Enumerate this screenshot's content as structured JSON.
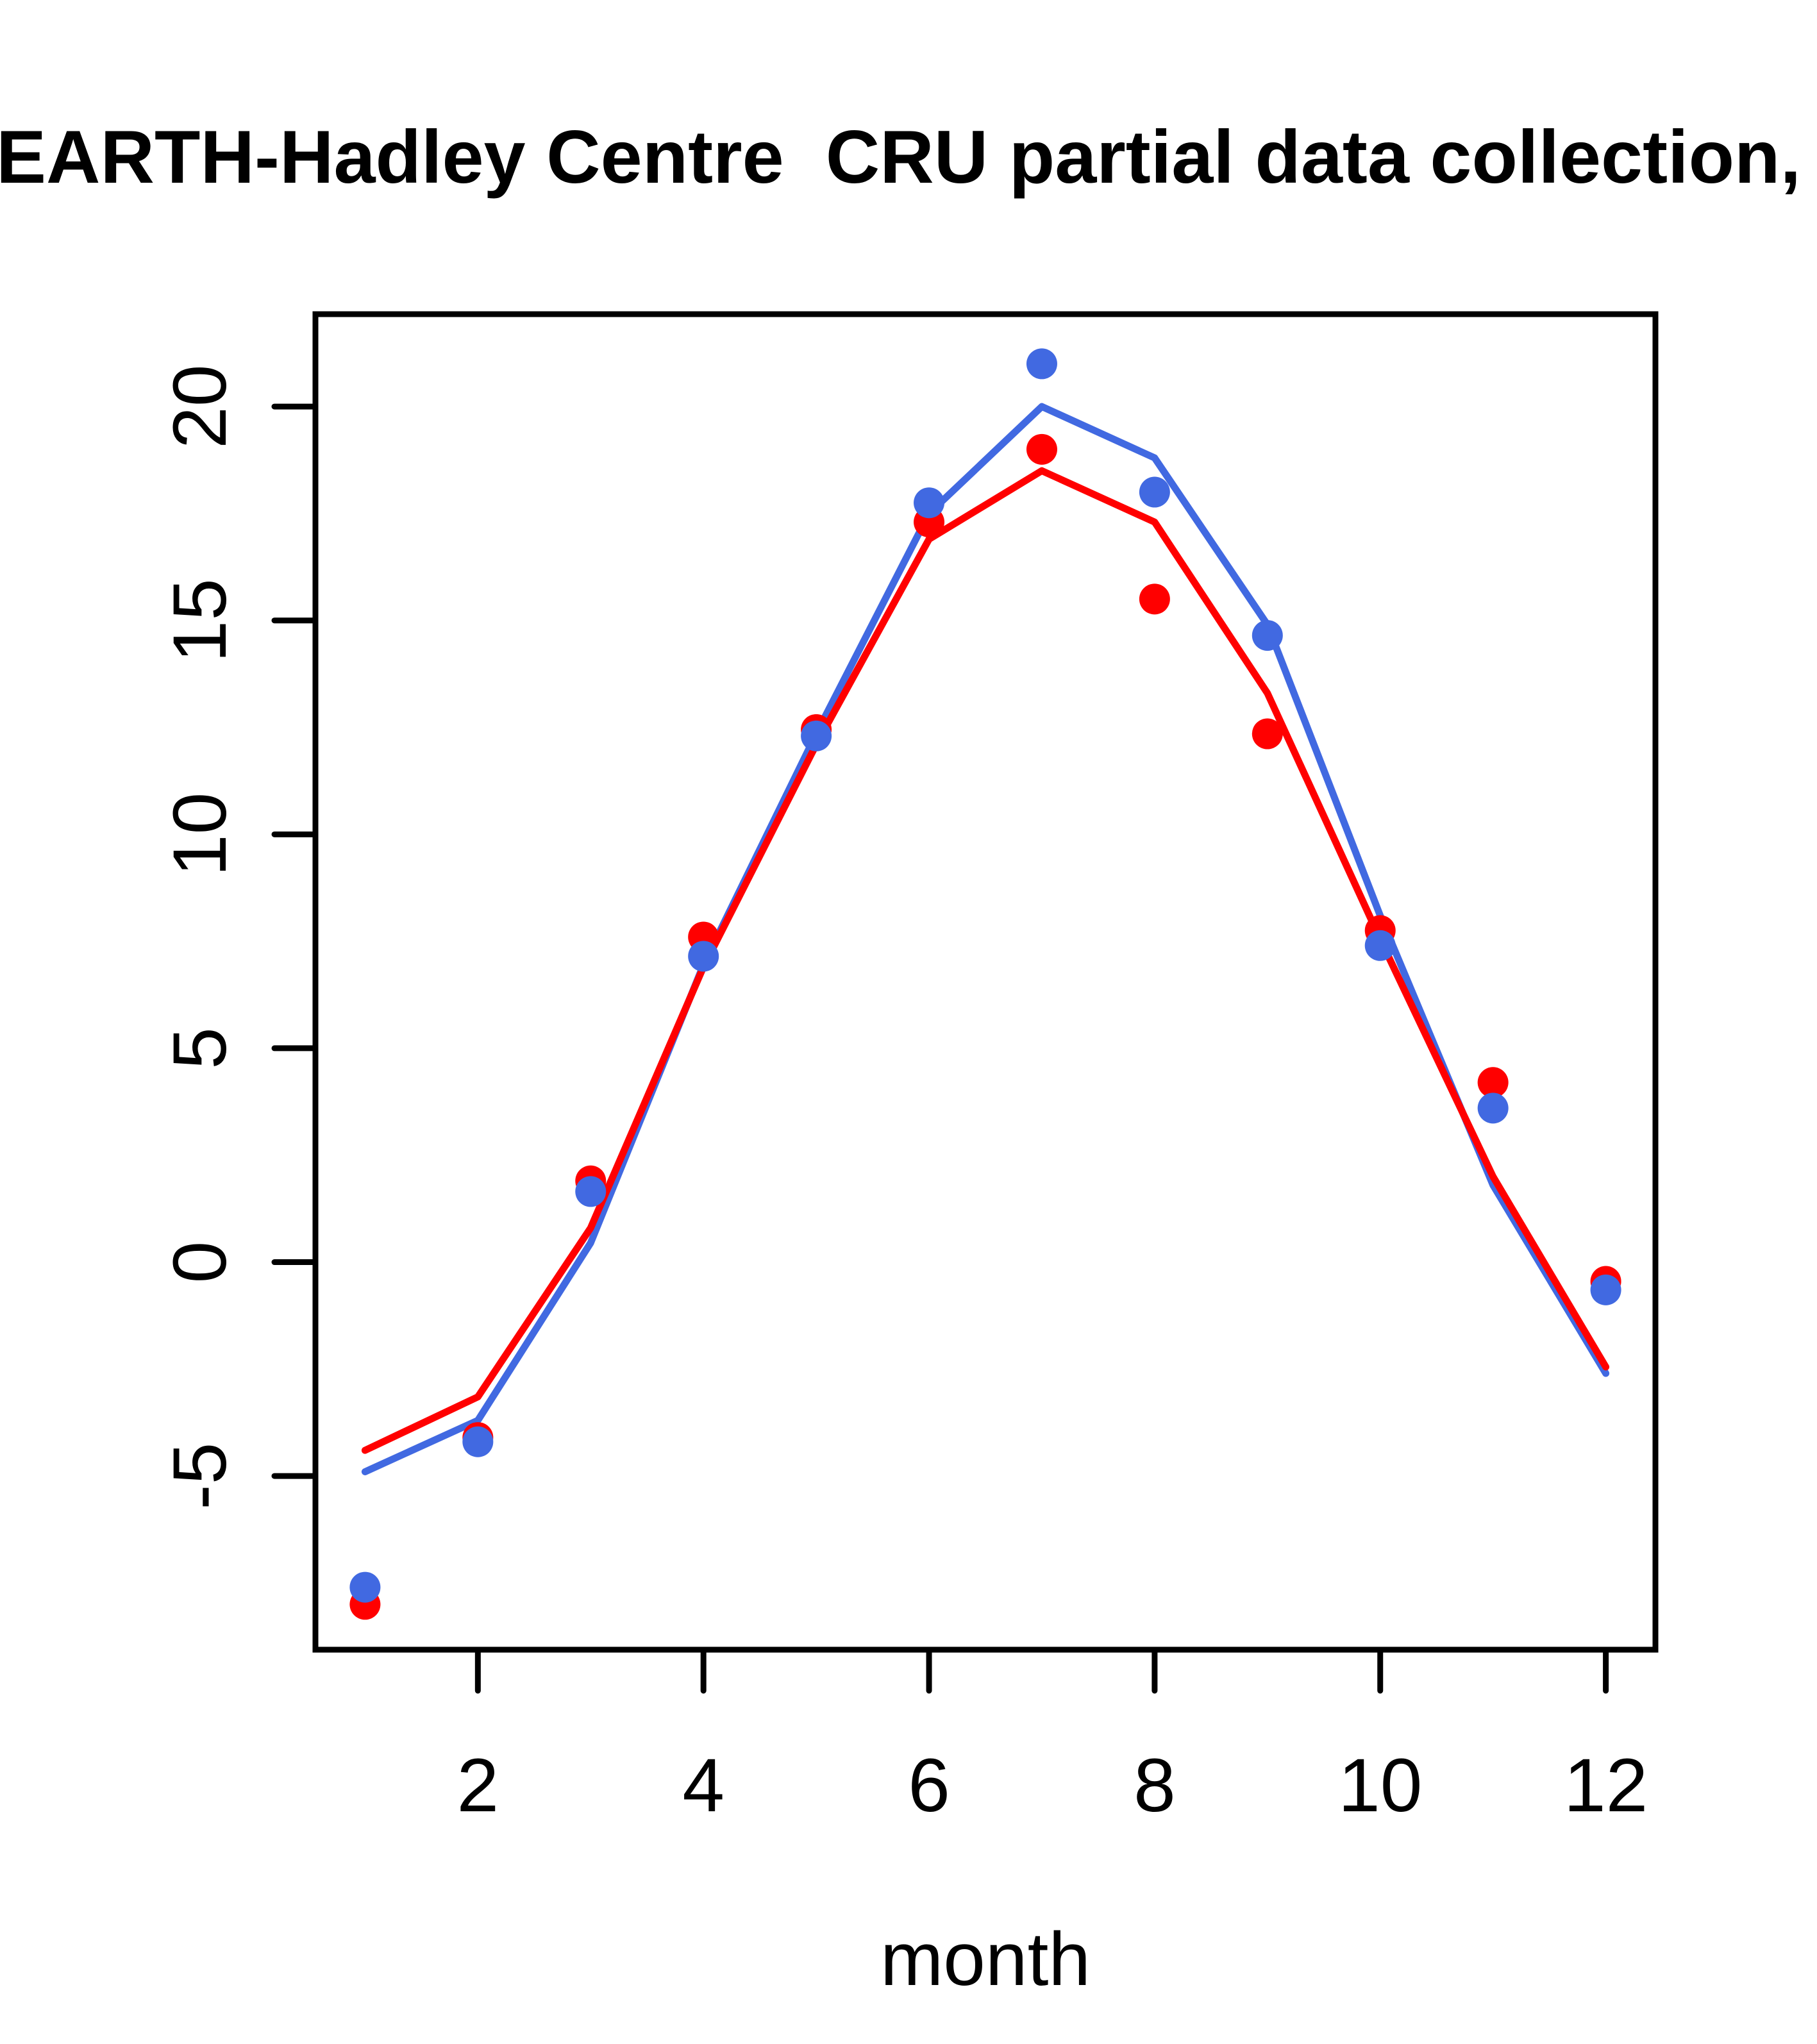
{
  "chart_data": {
    "type": "line",
    "title": "EARTH-Hadley Centre  CRU partial data collection,",
    "xlabel": "month",
    "ylabel": "",
    "x": [
      1,
      2,
      3,
      4,
      5,
      6,
      7,
      8,
      9,
      10,
      11,
      12
    ],
    "xticks": [
      2,
      4,
      6,
      8,
      10,
      12
    ],
    "yticks": [
      -5,
      0,
      5,
      10,
      15,
      20
    ],
    "xlim": [
      0.56,
      12.44
    ],
    "ylim": [
      -9.06,
      22.16
    ],
    "grid": false,
    "legend_position": "none",
    "background": "#FFFFFF",
    "axis_color": "#000000",
    "series": [
      {
        "name": "blue-line",
        "type": "line",
        "color": "#4169E1",
        "values": [
          -4.9,
          -3.7,
          0.45,
          6.95,
          12.35,
          17.5,
          20.0,
          18.8,
          14.9,
          8.1,
          1.8,
          -2.6
        ]
      },
      {
        "name": "red-line",
        "type": "line",
        "color": "#FF0000",
        "values": [
          -4.4,
          -3.15,
          0.8,
          6.9,
          12.1,
          16.9,
          18.5,
          17.3,
          13.3,
          7.55,
          2.0,
          -2.45
        ]
      },
      {
        "name": "red-points",
        "type": "scatter",
        "color": "#FF0000",
        "values": [
          -8.0,
          -4.1,
          1.9,
          7.6,
          12.45,
          17.3,
          19.0,
          15.5,
          12.35,
          7.75,
          4.2,
          -0.45
        ]
      },
      {
        "name": "blue-points",
        "type": "scatter",
        "color": "#4169E1",
        "values": [
          -7.6,
          -4.2,
          1.65,
          7.15,
          12.3,
          17.75,
          21.0,
          18.0,
          14.65,
          7.4,
          3.6,
          -0.65
        ]
      }
    ]
  }
}
